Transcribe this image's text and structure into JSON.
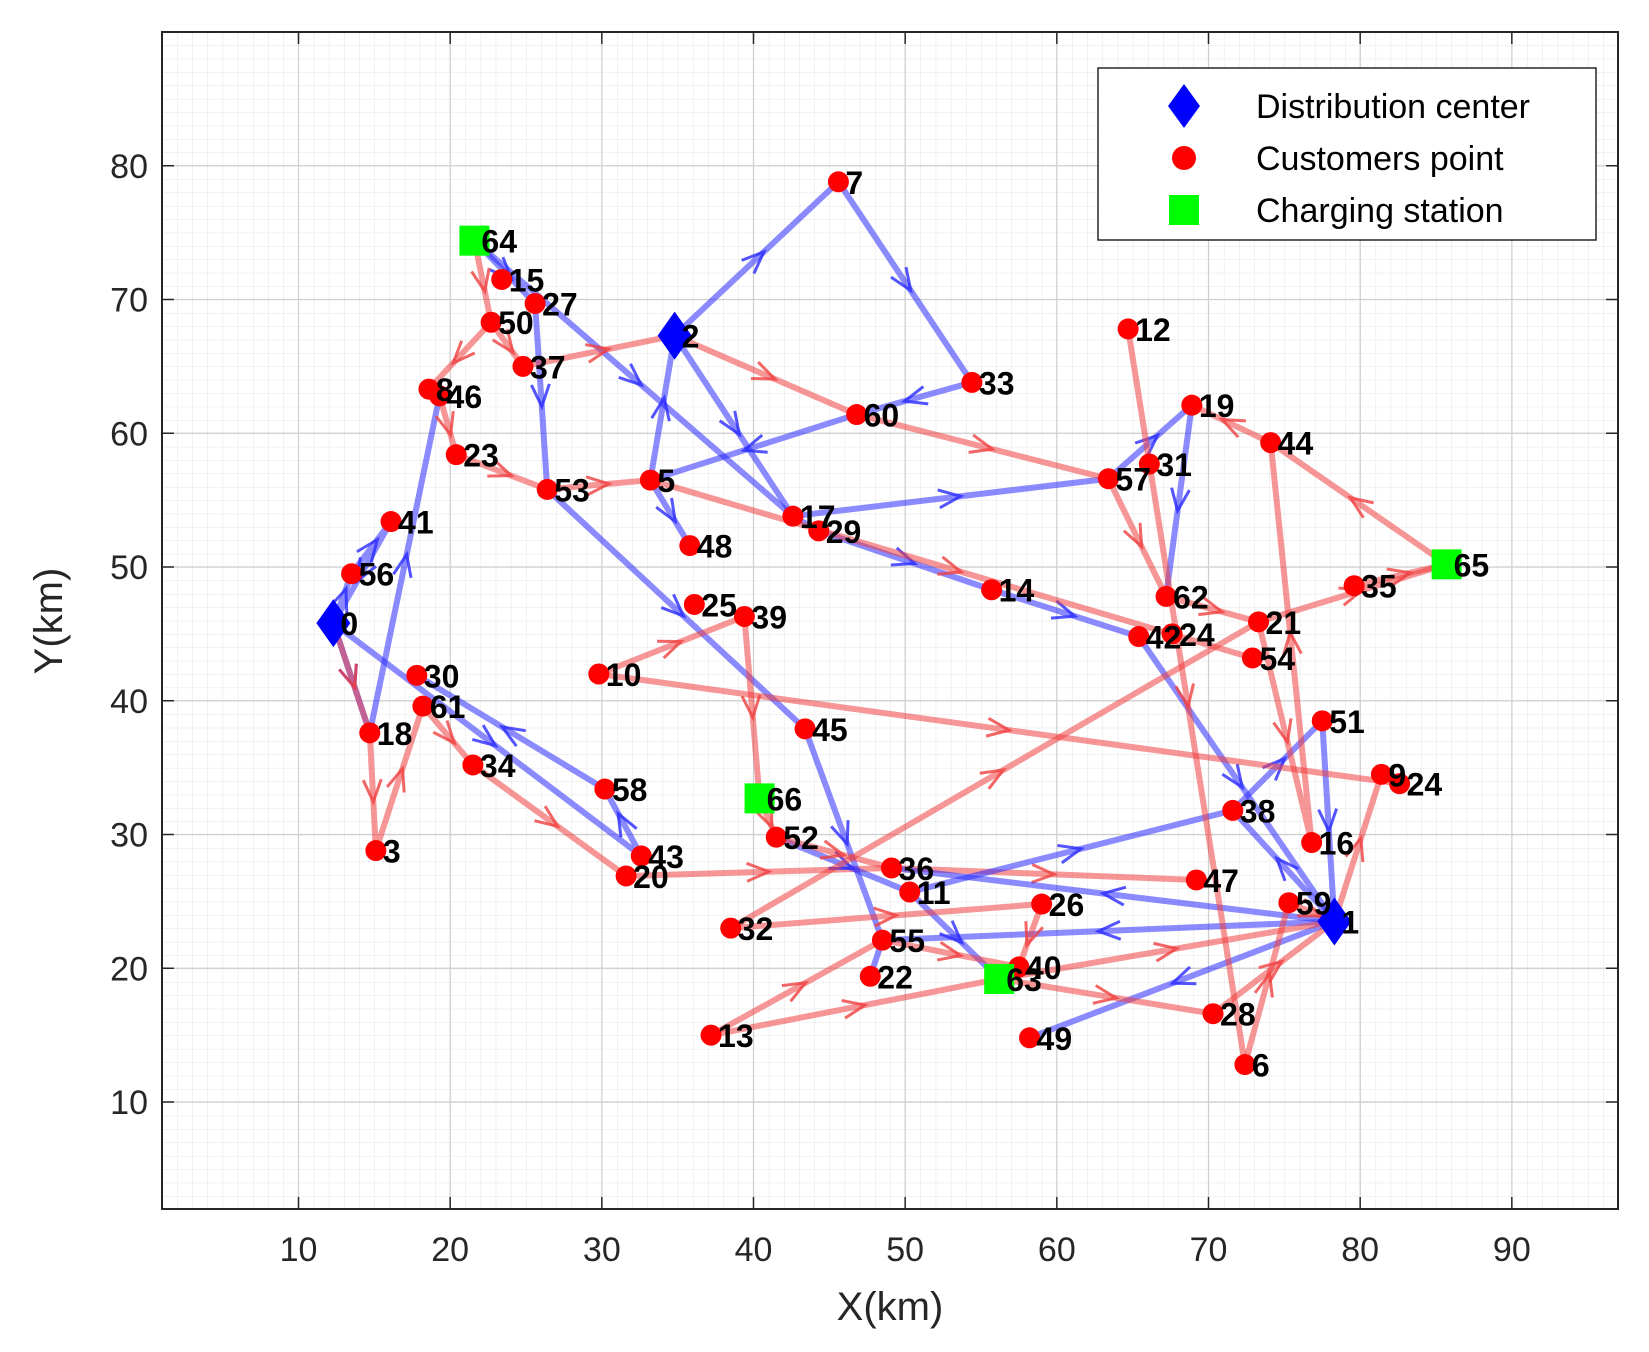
{
  "chart_data": {
    "type": "scatter",
    "title": "",
    "xlabel": "X(km)",
    "ylabel": "Y(km)",
    "xlim": [
      1,
      97
    ],
    "ylim": [
      2,
      90
    ],
    "xticks": [
      10,
      20,
      30,
      40,
      50,
      60,
      70,
      80,
      90
    ],
    "yticks": [
      10,
      20,
      30,
      40,
      50,
      60,
      70,
      80
    ],
    "grid": "on",
    "legend_position": "top-right",
    "legend": [
      {
        "label": "Distribution center",
        "marker": "diamond",
        "color": "#0000ff"
      },
      {
        "label": "Customers point",
        "marker": "circle",
        "color": "#ff0000"
      },
      {
        "label": "Charging station",
        "marker": "square",
        "color": "#00ff00"
      }
    ],
    "colors": {
      "blue_route": "#2b2bff",
      "red_route": "#f04040",
      "center": "#0000ff",
      "customer": "#ff0000",
      "station": "#00ff00"
    },
    "nodes": [
      {
        "id": "0",
        "x": 12.3,
        "y": 45.8,
        "kind": "center"
      },
      {
        "id": "1",
        "x": 78.3,
        "y": 23.5,
        "kind": "center"
      },
      {
        "id": "2",
        "x": 34.8,
        "y": 67.3,
        "kind": "center"
      },
      {
        "id": "3",
        "x": 15.1,
        "y": 28.8,
        "kind": "customer"
      },
      {
        "id": "5",
        "x": 33.2,
        "y": 56.5,
        "kind": "customer"
      },
      {
        "id": "6",
        "x": 72.4,
        "y": 12.8,
        "kind": "customer"
      },
      {
        "id": "7",
        "x": 45.6,
        "y": 78.8,
        "kind": "customer"
      },
      {
        "id": "8",
        "x": 18.6,
        "y": 63.3,
        "kind": "customer"
      },
      {
        "id": "9",
        "x": 81.4,
        "y": 34.5,
        "kind": "customer"
      },
      {
        "id": "10",
        "x": 29.8,
        "y": 42.0,
        "kind": "customer"
      },
      {
        "id": "11",
        "x": 50.3,
        "y": 25.7,
        "kind": "customer"
      },
      {
        "id": "12",
        "x": 64.7,
        "y": 67.8,
        "kind": "customer"
      },
      {
        "id": "13",
        "x": 37.2,
        "y": 15.0,
        "kind": "customer"
      },
      {
        "id": "14",
        "x": 55.7,
        "y": 48.3,
        "kind": "customer"
      },
      {
        "id": "15",
        "x": 23.4,
        "y": 71.5,
        "kind": "customer"
      },
      {
        "id": "16",
        "x": 76.8,
        "y": 29.4,
        "kind": "customer"
      },
      {
        "id": "17",
        "x": 42.6,
        "y": 53.8,
        "kind": "customer"
      },
      {
        "id": "18",
        "x": 14.7,
        "y": 37.6,
        "kind": "customer"
      },
      {
        "id": "19",
        "x": 68.9,
        "y": 62.1,
        "kind": "customer"
      },
      {
        "id": "20",
        "x": 31.6,
        "y": 26.9,
        "kind": "customer"
      },
      {
        "id": "21",
        "x": 73.3,
        "y": 45.9,
        "kind": "customer"
      },
      {
        "id": "22",
        "x": 47.7,
        "y": 19.4,
        "kind": "customer"
      },
      {
        "id": "23",
        "x": 20.4,
        "y": 58.4,
        "kind": "customer"
      },
      {
        "id": "24",
        "x": 67.6,
        "y": 45.0,
        "kind": "customer"
      },
      {
        "id": "24",
        "x": 82.6,
        "y": 33.8,
        "kind": "customer"
      },
      {
        "id": "25",
        "x": 36.1,
        "y": 47.2,
        "kind": "customer"
      },
      {
        "id": "26",
        "x": 59.0,
        "y": 24.8,
        "kind": "customer"
      },
      {
        "id": "27",
        "x": 25.6,
        "y": 69.7,
        "kind": "customer"
      },
      {
        "id": "28",
        "x": 70.3,
        "y": 16.6,
        "kind": "customer"
      },
      {
        "id": "29",
        "x": 44.3,
        "y": 52.7,
        "kind": "customer"
      },
      {
        "id": "30",
        "x": 17.8,
        "y": 41.9,
        "kind": "customer"
      },
      {
        "id": "31",
        "x": 66.1,
        "y": 57.7,
        "kind": "customer"
      },
      {
        "id": "32",
        "x": 38.5,
        "y": 23.0,
        "kind": "customer"
      },
      {
        "id": "33",
        "x": 54.4,
        "y": 63.8,
        "kind": "customer"
      },
      {
        "id": "34",
        "x": 21.5,
        "y": 35.2,
        "kind": "customer"
      },
      {
        "id": "35",
        "x": 79.6,
        "y": 48.6,
        "kind": "customer"
      },
      {
        "id": "36",
        "x": 49.1,
        "y": 27.5,
        "kind": "customer"
      },
      {
        "id": "37",
        "x": 24.8,
        "y": 65.0,
        "kind": "customer"
      },
      {
        "id": "38",
        "x": 71.6,
        "y": 31.8,
        "kind": "customer"
      },
      {
        "id": "39",
        "x": 39.4,
        "y": 46.3,
        "kind": "customer"
      },
      {
        "id": "40",
        "x": 57.5,
        "y": 20.1,
        "kind": "customer"
      },
      {
        "id": "41",
        "x": 16.1,
        "y": 53.4,
        "kind": "customer"
      },
      {
        "id": "42",
        "x": 65.4,
        "y": 44.8,
        "kind": "customer"
      },
      {
        "id": "43",
        "x": 32.6,
        "y": 28.4,
        "kind": "customer"
      },
      {
        "id": "44",
        "x": 74.1,
        "y": 59.3,
        "kind": "customer"
      },
      {
        "id": "45",
        "x": 43.4,
        "y": 37.9,
        "kind": "customer"
      },
      {
        "id": "46",
        "x": 19.3,
        "y": 62.8,
        "kind": "customer"
      },
      {
        "id": "47",
        "x": 69.2,
        "y": 26.6,
        "kind": "customer"
      },
      {
        "id": "48",
        "x": 35.8,
        "y": 51.6,
        "kind": "customer"
      },
      {
        "id": "49",
        "x": 58.2,
        "y": 14.8,
        "kind": "customer"
      },
      {
        "id": "50",
        "x": 22.7,
        "y": 68.3,
        "kind": "customer"
      },
      {
        "id": "51",
        "x": 77.5,
        "y": 38.5,
        "kind": "customer"
      },
      {
        "id": "52",
        "x": 41.5,
        "y": 29.8,
        "kind": "customer"
      },
      {
        "id": "53",
        "x": 26.4,
        "y": 55.8,
        "kind": "customer"
      },
      {
        "id": "54",
        "x": 72.9,
        "y": 43.2,
        "kind": "customer"
      },
      {
        "id": "55",
        "x": 48.5,
        "y": 22.1,
        "kind": "customer"
      },
      {
        "id": "56",
        "x": 13.5,
        "y": 49.5,
        "kind": "customer"
      },
      {
        "id": "57",
        "x": 63.4,
        "y": 56.6,
        "kind": "customer"
      },
      {
        "id": "58",
        "x": 30.2,
        "y": 33.4,
        "kind": "customer"
      },
      {
        "id": "59",
        "x": 75.3,
        "y": 24.9,
        "kind": "customer"
      },
      {
        "id": "60",
        "x": 46.8,
        "y": 61.4,
        "kind": "customer"
      },
      {
        "id": "61",
        "x": 18.2,
        "y": 39.6,
        "kind": "customer"
      },
      {
        "id": "62",
        "x": 67.2,
        "y": 47.8,
        "kind": "customer"
      },
      {
        "id": "63",
        "x": 56.2,
        "y": 19.2,
        "kind": "station"
      },
      {
        "id": "64",
        "x": 21.6,
        "y": 74.4,
        "kind": "station"
      },
      {
        "id": "65",
        "x": 85.7,
        "y": 50.2,
        "kind": "station"
      },
      {
        "id": "66",
        "x": 40.4,
        "y": 32.7,
        "kind": "station"
      }
    ],
    "routes": [
      {
        "color": "blue",
        "path": [
          [
            12.3,
            45.8
          ],
          [
            13.5,
            49.5
          ],
          [
            16.1,
            53.4
          ],
          [
            12.3,
            45.8
          ]
        ]
      },
      {
        "color": "blue",
        "path": [
          [
            12.3,
            45.8
          ],
          [
            14.7,
            37.6
          ],
          [
            19.3,
            62.8
          ]
        ]
      },
      {
        "color": "blue",
        "path": [
          [
            12.3,
            45.8
          ],
          [
            32.6,
            28.4
          ],
          [
            30.2,
            33.4
          ],
          [
            17.8,
            41.9
          ]
        ]
      },
      {
        "color": "red",
        "path": [
          [
            12.3,
            45.8
          ],
          [
            14.7,
            37.6
          ],
          [
            15.1,
            28.8
          ],
          [
            18.2,
            39.6
          ],
          [
            21.5,
            35.2
          ],
          [
            31.6,
            26.9
          ],
          [
            49.1,
            27.5
          ],
          [
            69.2,
            26.6
          ]
        ]
      },
      {
        "color": "blue",
        "path": [
          [
            34.8,
            67.3
          ],
          [
            45.6,
            78.8
          ],
          [
            54.4,
            63.8
          ],
          [
            46.8,
            61.4
          ],
          [
            33.2,
            56.5
          ]
        ]
      },
      {
        "color": "blue",
        "path": [
          [
            33.2,
            56.5
          ],
          [
            34.8,
            67.3
          ],
          [
            42.6,
            53.8
          ],
          [
            63.4,
            56.6
          ],
          [
            68.9,
            62.1
          ],
          [
            67.2,
            47.8
          ]
        ]
      },
      {
        "color": "blue",
        "path": [
          [
            21.6,
            74.4
          ],
          [
            25.6,
            69.7
          ],
          [
            26.4,
            55.8
          ],
          [
            43.4,
            37.9
          ],
          [
            48.5,
            22.1
          ]
        ]
      },
      {
        "color": "blue",
        "path": [
          [
            21.6,
            74.4
          ],
          [
            42.6,
            53.8
          ],
          [
            44.3,
            52.7
          ],
          [
            55.7,
            48.3
          ],
          [
            65.4,
            44.8
          ],
          [
            78.3,
            23.5
          ]
        ]
      },
      {
        "color": "blue",
        "path": [
          [
            33.2,
            56.5
          ],
          [
            35.8,
            51.6
          ]
        ]
      },
      {
        "color": "blue",
        "path": [
          [
            78.3,
            23.5
          ],
          [
            58.2,
            14.8
          ]
        ]
      },
      {
        "color": "blue",
        "path": [
          [
            78.3,
            23.5
          ],
          [
            49.1,
            27.5
          ]
        ]
      },
      {
        "color": "blue",
        "path": [
          [
            78.3,
            23.5
          ],
          [
            48.5,
            22.1
          ],
          [
            47.7,
            19.4
          ]
        ]
      },
      {
        "color": "blue",
        "path": [
          [
            78.3,
            23.5
          ],
          [
            71.6,
            31.8
          ],
          [
            77.5,
            38.5
          ],
          [
            78.3,
            23.5
          ]
        ]
      },
      {
        "color": "blue",
        "path": [
          [
            50.3,
            25.7
          ],
          [
            71.6,
            31.8
          ]
        ]
      },
      {
        "color": "blue",
        "path": [
          [
            41.5,
            29.8
          ],
          [
            50.3,
            25.7
          ],
          [
            56.2,
            19.2
          ]
        ]
      },
      {
        "color": "red",
        "path": [
          [
            21.6,
            74.4
          ],
          [
            22.7,
            68.3
          ],
          [
            18.6,
            63.3
          ]
        ]
      },
      {
        "color": "red",
        "path": [
          [
            22.7,
            68.3
          ],
          [
            24.8,
            65.0
          ],
          [
            34.8,
            67.3
          ],
          [
            46.8,
            61.4
          ],
          [
            63.4,
            56.6
          ],
          [
            67.2,
            47.8
          ],
          [
            73.3,
            45.9
          ],
          [
            85.7,
            50.2
          ],
          [
            74.1,
            59.3
          ],
          [
            68.9,
            62.1
          ]
        ]
      },
      {
        "color": "red",
        "path": [
          [
            19.3,
            62.8
          ],
          [
            20.4,
            58.4
          ],
          [
            26.4,
            55.8
          ],
          [
            33.2,
            56.5
          ],
          [
            72.9,
            43.2
          ]
        ]
      },
      {
        "color": "red",
        "path": [
          [
            64.7,
            67.8
          ],
          [
            72.4,
            12.8
          ]
        ]
      },
      {
        "color": "red",
        "path": [
          [
            73.3,
            45.9
          ],
          [
            76.8,
            29.4
          ],
          [
            74.1,
            59.3
          ]
        ]
      },
      {
        "color": "red",
        "path": [
          [
            29.8,
            42.0
          ],
          [
            82.6,
            33.8
          ]
        ]
      },
      {
        "color": "red",
        "path": [
          [
            29.8,
            42.0
          ],
          [
            39.4,
            46.3
          ],
          [
            40.4,
            32.7
          ],
          [
            41.5,
            29.8
          ],
          [
            49.1,
            27.5
          ]
        ]
      },
      {
        "color": "red",
        "path": [
          [
            38.5,
            23.0
          ],
          [
            59.0,
            24.8
          ],
          [
            57.5,
            20.1
          ],
          [
            56.2,
            19.2
          ],
          [
            70.3,
            16.6
          ],
          [
            78.3,
            23.5
          ],
          [
            81.4,
            34.5
          ]
        ]
      },
      {
        "color": "red",
        "path": [
          [
            38.5,
            23.0
          ],
          [
            73.3,
            45.9
          ]
        ]
      },
      {
        "color": "red",
        "path": [
          [
            37.2,
            15.0
          ],
          [
            56.2,
            19.2
          ],
          [
            78.3,
            23.5
          ]
        ]
      },
      {
        "color": "red",
        "path": [
          [
            37.2,
            15.0
          ],
          [
            48.5,
            22.1
          ],
          [
            57.5,
            20.1
          ]
        ]
      },
      {
        "color": "red",
        "path": [
          [
            72.4,
            12.8
          ],
          [
            75.3,
            24.9
          ],
          [
            78.3,
            23.5
          ]
        ]
      },
      {
        "color": "red",
        "path": [
          [
            79.6,
            48.6
          ],
          [
            85.7,
            50.2
          ]
        ]
      }
    ]
  }
}
